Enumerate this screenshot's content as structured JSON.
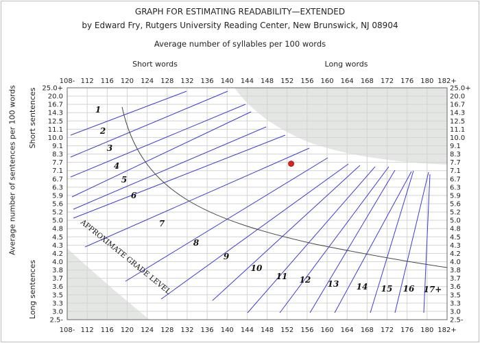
{
  "header": {
    "title": "GRAPH FOR ESTIMATING READABILITY—EXTENDED",
    "subtitle": "by Edward Fry, Rutgers University Reading Center, New Brunswick, NJ 08904",
    "x_axis_title": "Average number of syllables per 100 words",
    "y_axis_title": "Average number of sentences per 100 words"
  },
  "chart_data": {
    "type": "scatter",
    "title": "GRAPH FOR ESTIMATING READABILITY—EXTENDED",
    "xlabel": "Average number of syllables per 100 words",
    "ylabel": "Average number of sentences per 100 words",
    "x_ticks": [
      "108-",
      "112",
      "116",
      "120",
      "124",
      "128",
      "132",
      "136",
      "140",
      "144",
      "148",
      "152",
      "156",
      "160",
      "164",
      "168",
      "172",
      "176",
      "180",
      "182+"
    ],
    "y_ticks": [
      "25.0+",
      "20.0",
      "16.7",
      "14.3",
      "12.5",
      "11.1",
      "10.0",
      "9.1",
      "8.3",
      "7.7",
      "7.1",
      "6.7",
      "6.3",
      "5.9",
      "5.6",
      "5.2",
      "5.0",
      "4.8",
      "4.5",
      "4.3",
      "4.2",
      "4.0",
      "3.8",
      "3.7",
      "3.6",
      "3.5",
      "3.3",
      "3.0",
      "2.5-"
    ],
    "xlim": [
      108,
      182
    ],
    "ylim": [
      2.5,
      25.0
    ],
    "x_scale": "linear",
    "y_scale": "reciprocal (sentence length)",
    "grid": true,
    "top_labels": [
      "Short words",
      "Long words"
    ],
    "left_labels": [
      "Short sentences",
      "Long sentences"
    ],
    "grade_labels": [
      "1",
      "2",
      "3",
      "4",
      "5",
      "6",
      "7",
      "8",
      "9",
      "10",
      "11",
      "12",
      "13",
      "14",
      "15",
      "16",
      "17+"
    ],
    "diagonal_label": "APPROXIMATE GRADE LEVEL",
    "highlight_grade": "8",
    "point": {
      "x": 152.8,
      "y": 7.6
    },
    "colors": {
      "grade_lines": "#3b3bd6",
      "point": "#dd2222",
      "highlight_grade": "#dd2222",
      "invalid_region": "#e4e6e4",
      "grid": "#d3d3d3",
      "curve": "#444444"
    }
  }
}
